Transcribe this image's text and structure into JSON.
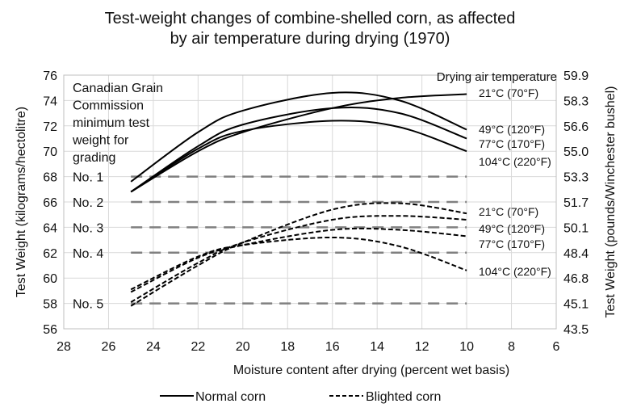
{
  "chart_data": {
    "type": "line",
    "title": [
      "Test-weight changes of combine-shelled corn, as affected",
      "by air temperature during drying (1970)"
    ],
    "xlabel": "Moisture content after drying (percent wet basis)",
    "ylabel": "Test Weight (kilograms/hectolitre)",
    "y2label": "Test Weight (pounds/Winchester bushel)",
    "xlim": [
      28,
      6
    ],
    "x_reversed": true,
    "ylim": [
      56,
      76
    ],
    "xticks": [
      "28",
      "26",
      "24",
      "22",
      "20",
      "18",
      "16",
      "14",
      "12",
      "10",
      "8",
      "6"
    ],
    "yticks": [
      "56",
      "58",
      "60",
      "62",
      "64",
      "66",
      "68",
      "70",
      "72",
      "74",
      "76"
    ],
    "y2ticks": [
      "43.5",
      "45.1",
      "46.8",
      "48.4",
      "50.1",
      "51.7",
      "53.3",
      "55.0",
      "56.6",
      "58.3",
      "59.9"
    ],
    "grid": true,
    "legend_position": "bottom",
    "legend": [
      {
        "label": "Normal corn",
        "style": "solid"
      },
      {
        "label": "Blighted corn",
        "style": "dashed"
      }
    ],
    "series_group_label": "Drying air temperature",
    "x": [
      25,
      22,
      20,
      16,
      13,
      10
    ],
    "series": [
      {
        "name": "21°C (70°F)",
        "group": "Normal corn",
        "style": "solid",
        "values": [
          66.8,
          70.0,
          71.5,
          73.4,
          74.2,
          74.5
        ]
      },
      {
        "name": "49°C (120°F)",
        "group": "Normal corn",
        "style": "solid",
        "values": [
          67.6,
          71.5,
          73.2,
          74.6,
          74.0,
          71.7
        ]
      },
      {
        "name": "77°C (170°F)",
        "group": "Normal corn",
        "style": "solid",
        "values": [
          66.8,
          70.4,
          72.1,
          73.4,
          73.0,
          71.0
        ]
      },
      {
        "name": "104°C (220°F)",
        "group": "Normal corn",
        "style": "solid",
        "values": [
          66.8,
          70.2,
          71.6,
          72.4,
          71.9,
          70.0
        ]
      },
      {
        "name": "21°C (70°F)",
        "group": "Blighted corn",
        "style": "dashed",
        "values": [
          57.8,
          61.0,
          62.8,
          65.4,
          65.9,
          65.1
        ]
      },
      {
        "name": "49°C (120°F)",
        "group": "Blighted corn",
        "style": "dashed",
        "values": [
          58.1,
          61.2,
          62.8,
          64.6,
          64.9,
          64.6
        ]
      },
      {
        "name": "77°C (170°F)",
        "group": "Blighted corn",
        "style": "dashed",
        "values": [
          58.9,
          61.6,
          62.6,
          63.8,
          63.8,
          63.3
        ]
      },
      {
        "name": "104°C (220°F)",
        "group": "Blighted corn",
        "style": "dashed",
        "values": [
          59.1,
          61.7,
          62.6,
          63.2,
          62.5,
          60.6
        ]
      }
    ],
    "grade_note": [
      "Canadian Grain",
      "Commission",
      "minimum  test",
      "weight  for",
      "grading"
    ],
    "grades": [
      {
        "label": "No. 1",
        "value": 68
      },
      {
        "label": "No. 2",
        "value": 66
      },
      {
        "label": "No. 3",
        "value": 64
      },
      {
        "label": "No. 4",
        "value": 62
      },
      {
        "label": "No. 5",
        "value": 58
      }
    ],
    "grade_line_range": [
      25,
      10
    ],
    "colors": {
      "curve": "#000000",
      "grade_line": "#808080",
      "grid": "#d9d9d9"
    }
  }
}
